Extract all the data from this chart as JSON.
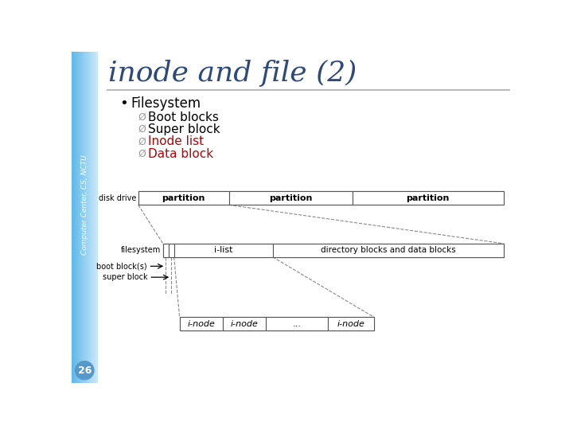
{
  "title": "inode and file (2)",
  "title_color": "#2E4A7A",
  "title_fontsize": 26,
  "sidebar_color_left": "#5BB8E8",
  "sidebar_color_right": "#C8E8F8",
  "sidebar_text": "Computer Center, CS, NCTU",
  "sidebar_text_color": "#FFFFFF",
  "slide_bg": "#FFFFFF",
  "page_number": "26",
  "page_number_bg": "#5599CC",
  "page_number_color": "#FFFFFF",
  "bullet_text": "Filesystem",
  "sub_bullets": [
    "Boot blocks",
    "Super block",
    "Inode list",
    "Data block"
  ],
  "sub_bullet_colors": [
    "#000000",
    "#000000",
    "#BB0000",
    "#BB0000"
  ],
  "separator_color": "#BBBBBB",
  "diagram": {
    "disk_drive_label": "disk drive",
    "partition_labels": [
      "partition",
      "partition",
      "partition"
    ],
    "filesystem_label": "filesystem",
    "ilist_label": "i-list",
    "data_blocks_label": "directory blocks and data blocks",
    "boot_blocks_label": "boot block(s)",
    "super_block_label": "super block",
    "inode_labels": [
      "i-node",
      "i-node",
      "...",
      "i-node"
    ]
  }
}
